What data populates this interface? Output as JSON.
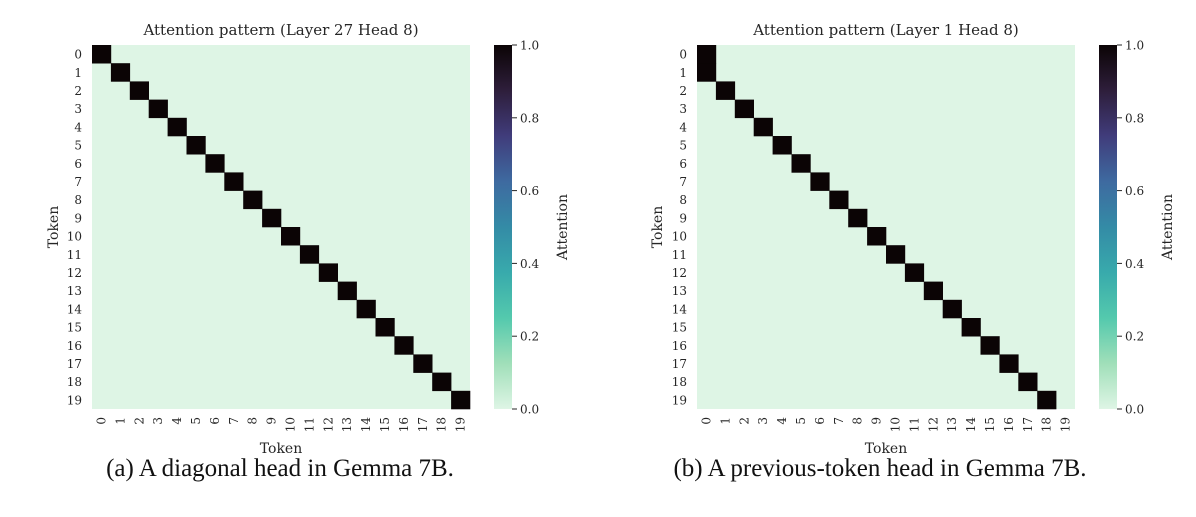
{
  "colors": {
    "low": "#def5e5",
    "stops": [
      "#def5e5",
      "#a0dfb9",
      "#54c9ad",
      "#38aaac",
      "#348ba6",
      "#3e6aa0",
      "#403c7b",
      "#2e1e3b",
      "#0b0405"
    ]
  },
  "chart_data": [
    {
      "type": "heatmap",
      "title": "Attention pattern (Layer 27 Head 8)",
      "xlabel": "Token",
      "ylabel": "Token",
      "x_ticks": [
        "0",
        "1",
        "2",
        "3",
        "4",
        "5",
        "6",
        "7",
        "8",
        "9",
        "10",
        "11",
        "12",
        "13",
        "14",
        "15",
        "16",
        "17",
        "18",
        "19"
      ],
      "y_ticks": [
        "0",
        "1",
        "2",
        "3",
        "4",
        "5",
        "6",
        "7",
        "8",
        "9",
        "10",
        "11",
        "12",
        "13",
        "14",
        "15",
        "16",
        "17",
        "18",
        "19"
      ],
      "colorbar": {
        "label": "Attention",
        "min": 0.0,
        "max": 1.0,
        "ticks": [
          "0.0",
          "0.2",
          "0.4",
          "0.6",
          "0.8",
          "1.0"
        ]
      },
      "pattern": "diagonal",
      "description": "value 1.0 at (row i, col i) for i = 0..19, all other cells 0.0",
      "nonzero_cells": [
        [
          0,
          0,
          1.0
        ],
        [
          1,
          1,
          1.0
        ],
        [
          2,
          2,
          1.0
        ],
        [
          3,
          3,
          1.0
        ],
        [
          4,
          4,
          1.0
        ],
        [
          5,
          5,
          1.0
        ],
        [
          6,
          6,
          1.0
        ],
        [
          7,
          7,
          1.0
        ],
        [
          8,
          8,
          1.0
        ],
        [
          9,
          9,
          1.0
        ],
        [
          10,
          10,
          1.0
        ],
        [
          11,
          11,
          1.0
        ],
        [
          12,
          12,
          1.0
        ],
        [
          13,
          13,
          1.0
        ],
        [
          14,
          14,
          1.0
        ],
        [
          15,
          15,
          1.0
        ],
        [
          16,
          16,
          1.0
        ],
        [
          17,
          17,
          1.0
        ],
        [
          18,
          18,
          1.0
        ],
        [
          19,
          19,
          1.0
        ]
      ],
      "caption": "(a) A diagonal head in Gemma 7B."
    },
    {
      "type": "heatmap",
      "title": "Attention pattern (Layer 1 Head 8)",
      "xlabel": "Token",
      "ylabel": "Token",
      "x_ticks": [
        "0",
        "1",
        "2",
        "3",
        "4",
        "5",
        "6",
        "7",
        "8",
        "9",
        "10",
        "11",
        "12",
        "13",
        "14",
        "15",
        "16",
        "17",
        "18",
        "19"
      ],
      "y_ticks": [
        "0",
        "1",
        "2",
        "3",
        "4",
        "5",
        "6",
        "7",
        "8",
        "9",
        "10",
        "11",
        "12",
        "13",
        "14",
        "15",
        "16",
        "17",
        "18",
        "19"
      ],
      "colorbar": {
        "label": "Attention",
        "min": 0.0,
        "max": 1.0,
        "ticks": [
          "0.0",
          "0.2",
          "0.4",
          "0.6",
          "0.8",
          "1.0"
        ]
      },
      "pattern": "previous-token",
      "description": "value 1.0 at (row 0, col 0) and (row i, col i-1) for i = 1..19, all other cells 0.0",
      "nonzero_cells": [
        [
          0,
          0,
          1.0
        ],
        [
          1,
          0,
          1.0
        ],
        [
          2,
          1,
          1.0
        ],
        [
          3,
          2,
          1.0
        ],
        [
          4,
          3,
          1.0
        ],
        [
          5,
          4,
          1.0
        ],
        [
          6,
          5,
          1.0
        ],
        [
          7,
          6,
          1.0
        ],
        [
          8,
          7,
          1.0
        ],
        [
          9,
          8,
          1.0
        ],
        [
          10,
          9,
          1.0
        ],
        [
          11,
          10,
          1.0
        ],
        [
          12,
          11,
          1.0
        ],
        [
          13,
          12,
          1.0
        ],
        [
          14,
          13,
          1.0
        ],
        [
          15,
          14,
          1.0
        ],
        [
          16,
          15,
          1.0
        ],
        [
          17,
          16,
          1.0
        ],
        [
          18,
          17,
          1.0
        ],
        [
          19,
          18,
          1.0
        ]
      ],
      "caption": "(b) A previous-token head in Gemma 7B."
    }
  ]
}
